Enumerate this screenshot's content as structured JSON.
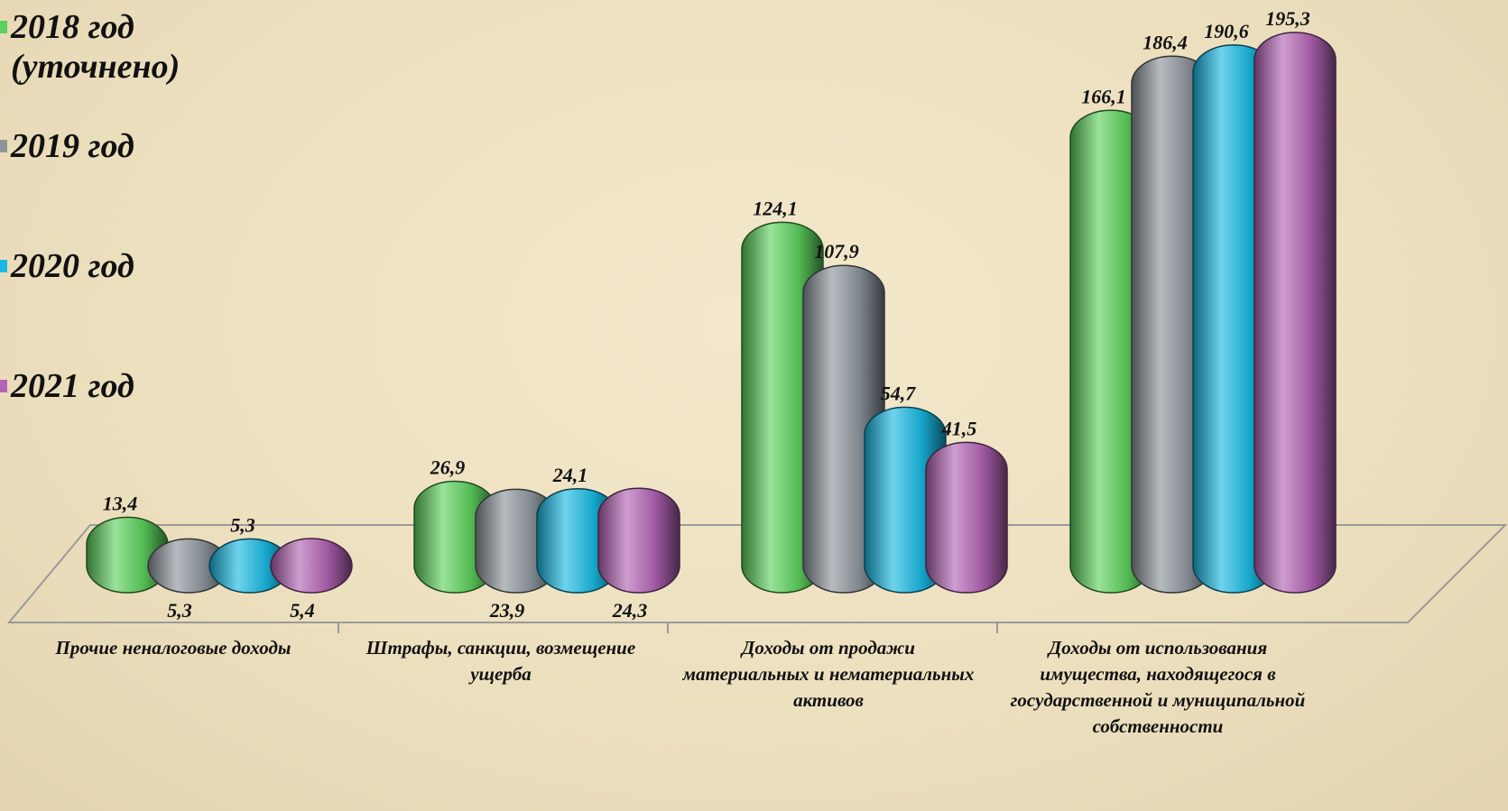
{
  "chart_data": {
    "type": "bar",
    "categories": [
      "Прочие неналоговые доходы",
      "Штрафы, санкции, возмещение ущерба",
      "Доходы от продажи материальных и нематериальных активов",
      "Доходы от использования имущества, находящегося в государственной и муниципальной собственности"
    ],
    "series": [
      {
        "name": "2018 год (уточнено)",
        "color": "#5cd05c",
        "values": [
          13.4,
          26.9,
          124.1,
          166.1
        ],
        "value_labels": [
          "13,4",
          "26,9",
          "124,1",
          "166,1"
        ]
      },
      {
        "name": "2019 год",
        "color": "#8c949b",
        "values": [
          5.3,
          23.9,
          107.9,
          186.4
        ],
        "value_labels": [
          "5,3",
          "23,9",
          "107,9",
          "186,4"
        ]
      },
      {
        "name": "2020 год",
        "color": "#18b8e2",
        "values": [
          5.3,
          24.1,
          54.7,
          190.6
        ],
        "value_labels": [
          "5,3",
          "24,1",
          "54,7",
          "190,6"
        ]
      },
      {
        "name": "2021 год",
        "color": "#b263b4",
        "values": [
          5.4,
          24.3,
          41.5,
          195.3
        ],
        "value_labels": [
          "5,4",
          "24,3",
          "41,5",
          "195,3"
        ]
      }
    ]
  }
}
